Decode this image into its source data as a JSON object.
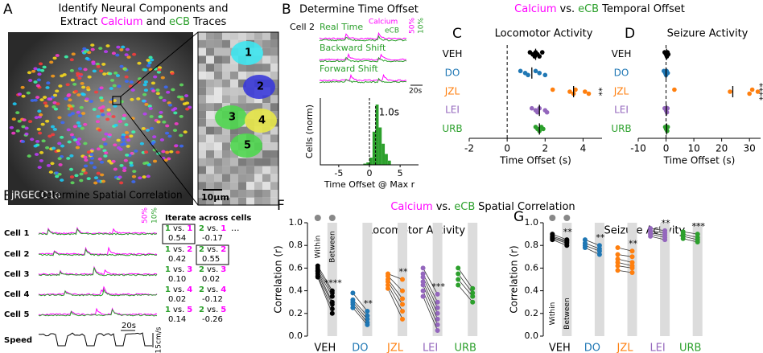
{
  "letters": [
    "A",
    "B",
    "C",
    "D",
    "E",
    "F",
    "G"
  ],
  "A": {
    "title": "Identify Neural Components and",
    "subtitle": [
      "Extract",
      "Calcium",
      "and",
      "eCB",
      "Traces"
    ],
    "indicator": "jRGECO1a",
    "scalebar": "10μm",
    "rois": [
      "1",
      "2",
      "3",
      "4",
      "5"
    ]
  },
  "B": {
    "title": "Determine Time Offset",
    "cell": "Cell 2",
    "traces": [
      "Real Time",
      "Backward Shift",
      "Forward Shift"
    ],
    "legend": [
      "Calcium",
      "eCB"
    ],
    "scales": [
      "50%",
      "10%"
    ],
    "time_scale": "20s"
  },
  "header_temporal": [
    "Calcium",
    "vs.",
    "eCB",
    "Temporal Offset"
  ],
  "header_spatial": [
    "Calcium",
    "vs.",
    "eCB",
    "Spatial Correlation"
  ],
  "E": {
    "title": "Determine Spatial Correlation",
    "cells": [
      "Cell 1",
      "Cell 2",
      "Cell 3",
      "Cell 4",
      "Cell 5"
    ],
    "iterate": "Iterate across cells",
    "ellipsis": "...",
    "pairs": [
      [
        {
          "ecb": "1",
          "vs": "vs.",
          "ca": "1",
          "r": "0.54"
        },
        {
          "ecb": "2",
          "vs": "vs.",
          "ca": "1",
          "r": "-0.17"
        }
      ],
      [
        {
          "ecb": "1",
          "vs": "vs.",
          "ca": "2",
          "r": "0.42"
        },
        {
          "ecb": "2",
          "vs": "vs.",
          "ca": "2",
          "r": "0.55"
        }
      ],
      [
        {
          "ecb": "1",
          "vs": "vs.",
          "ca": "3",
          "r": "0.10"
        },
        {
          "ecb": "2",
          "vs": "vs.",
          "ca": "3",
          "r": "0.02"
        }
      ],
      [
        {
          "ecb": "1",
          "vs": "vs.",
          "ca": "4",
          "r": "0.02"
        },
        {
          "ecb": "2",
          "vs": "vs.",
          "ca": "4",
          "r": "-0.12"
        }
      ],
      [
        {
          "ecb": "1",
          "vs": "vs.",
          "ca": "5",
          "r": "0.14"
        },
        {
          "ecb": "2",
          "vs": "vs.",
          "ca": "5",
          "r": "-0.26"
        }
      ]
    ],
    "speed": "Speed",
    "time_scale": "20s",
    "speed_scale": "15cm/s",
    "scales": [
      "50%",
      "10%"
    ]
  },
  "chart_data": [
    {
      "type": "histogram",
      "ylabel": "Cells (norm)",
      "xlabel": "Time Offset @ Max r",
      "color": "#2ca02c",
      "bins": [
        -1,
        -0.5,
        0,
        0.5,
        1,
        1.5,
        2,
        2.5,
        3,
        3.5
      ],
      "counts": [
        0.02,
        0.04,
        0.12,
        0.55,
        1.0,
        0.62,
        0.35,
        0.18,
        0.07
      ],
      "xlim": [
        -8,
        8
      ],
      "xticks": [
        -5,
        0,
        5
      ],
      "reference_line": 0,
      "mean_line": 1.0,
      "annotation": "1.0s"
    },
    {
      "type": "strip",
      "title": "Locomotor Activity",
      "xlabel": "Time Offset (s)",
      "xlim": [
        -2,
        5
      ],
      "xticks": [
        -2,
        0,
        2,
        4
      ],
      "reference_line": 0,
      "series": [
        {
          "name": "VEH",
          "color": "#000000",
          "values": [
            1.2,
            1.35,
            1.45,
            1.5,
            1.6,
            1.7,
            1.85
          ],
          "mean": 1.5
        },
        {
          "name": "DO",
          "color": "#1f77b4",
          "values": [
            0.7,
            0.95,
            1.1,
            1.5,
            1.7,
            2.0
          ],
          "mean": 1.3
        },
        {
          "name": "JZL",
          "color": "#ff7f0e",
          "values": [
            2.4,
            3.3,
            3.5,
            3.6,
            4.1,
            4.3
          ],
          "mean": 3.5,
          "significance": "**"
        },
        {
          "name": "LEI",
          "color": "#9467bd",
          "values": [
            1.3,
            1.5,
            1.6,
            1.7,
            2.0,
            2.1
          ],
          "mean": 1.7
        },
        {
          "name": "URB",
          "color": "#2ca02c",
          "values": [
            1.5,
            1.6,
            1.7,
            1.8,
            1.9
          ],
          "mean": 1.7
        }
      ]
    },
    {
      "type": "strip",
      "title": "Seizure Activity",
      "xlabel": "Time Offset (s)",
      "xlim": [
        -10,
        34
      ],
      "xticks": [
        -10,
        0,
        10,
        20,
        30
      ],
      "reference_line": 0,
      "series": [
        {
          "name": "VEH",
          "color": "#000000",
          "values": [
            -0.5,
            0,
            0.3,
            0.5,
            0.8
          ],
          "mean": 0.2
        },
        {
          "name": "DO",
          "color": "#1f77b4",
          "values": [
            -0.8,
            -0.3,
            0,
            0.2,
            0.6
          ],
          "mean": 0
        },
        {
          "name": "JZL",
          "color": "#ff7f0e",
          "values": [
            3,
            23,
            30,
            31,
            33
          ],
          "mean": 24,
          "significance": "****"
        },
        {
          "name": "LEI",
          "color": "#9467bd",
          "values": [
            -0.5,
            0,
            0.3,
            0.5
          ],
          "mean": 0.1
        },
        {
          "name": "URB",
          "color": "#2ca02c",
          "values": [
            -0.3,
            0,
            0.4,
            0.6
          ],
          "mean": 0.2
        }
      ]
    },
    {
      "type": "paired",
      "title": "Locomotor Activity",
      "ylabel": "Correlation (r)",
      "legend": [
        "Within",
        "Between"
      ],
      "ylim": [
        0,
        1
      ],
      "yticks": [
        {
          "value": 0,
          "label": "0.0"
        },
        0.2,
        0.4,
        0.6,
        0.8,
        {
          "value": 1,
          "label": "1.0"
        }
      ],
      "series": [
        {
          "name": "VEH",
          "color": "#000000",
          "within": [
            0.62,
            0.6,
            0.58,
            0.57,
            0.55,
            0.53,
            0.52
          ],
          "between": [
            0.4,
            0.38,
            0.35,
            0.3,
            0.28,
            0.24,
            0.2
          ],
          "significance": "****"
        },
        {
          "name": "DO",
          "color": "#1f77b4",
          "within": [
            0.38,
            0.32,
            0.3,
            0.28,
            0.25
          ],
          "between": [
            0.22,
            0.18,
            0.15,
            0.12,
            0.1
          ],
          "significance": "**"
        },
        {
          "name": "JZL",
          "color": "#ff7f0e",
          "within": [
            0.55,
            0.53,
            0.5,
            0.48,
            0.45,
            0.42
          ],
          "between": [
            0.5,
            0.4,
            0.33,
            0.28,
            0.22,
            0.15
          ],
          "significance": "**"
        },
        {
          "name": "LEI",
          "color": "#9467bd",
          "within": [
            0.6,
            0.55,
            0.52,
            0.48,
            0.45,
            0.4,
            0.35
          ],
          "between": [
            0.37,
            0.3,
            0.25,
            0.2,
            0.15,
            0.1,
            0.05
          ],
          "significance": "***"
        },
        {
          "name": "URB",
          "color": "#2ca02c",
          "within": [
            0.6,
            0.55,
            0.5,
            0.45
          ],
          "between": [
            0.42,
            0.38,
            0.35,
            0.3
          ]
        }
      ]
    },
    {
      "type": "paired",
      "title": "Seizure Activity",
      "ylabel": "Correlation (r)",
      "legend": [
        "Within",
        "Between"
      ],
      "ylim": [
        0,
        1
      ],
      "yticks": [
        {
          "value": 0,
          "label": "0.0"
        },
        0.2,
        0.4,
        0.6,
        0.8,
        {
          "value": 1,
          "label": "1.0"
        }
      ],
      "series": [
        {
          "name": "VEH",
          "color": "#000000",
          "within": [
            0.9,
            0.88,
            0.87,
            0.86,
            0.85
          ],
          "between": [
            0.85,
            0.84,
            0.83,
            0.82,
            0.8
          ],
          "significance": "**"
        },
        {
          "name": "DO",
          "color": "#1f77b4",
          "within": [
            0.85,
            0.82,
            0.8,
            0.78
          ],
          "between": [
            0.8,
            0.77,
            0.75,
            0.72
          ],
          "significance": "**"
        },
        {
          "name": "JZL",
          "color": "#ff7f0e",
          "within": [
            0.78,
            0.72,
            0.68,
            0.65,
            0.62,
            0.58
          ],
          "between": [
            0.75,
            0.7,
            0.65,
            0.62,
            0.6,
            0.56
          ],
          "significance": "**"
        },
        {
          "name": "LEI",
          "color": "#9467bd",
          "within": [
            0.95,
            0.93,
            0.91,
            0.9,
            0.88
          ],
          "between": [
            0.93,
            0.91,
            0.89,
            0.87,
            0.85
          ],
          "significance": "**"
        },
        {
          "name": "URB",
          "color": "#2ca02c",
          "within": [
            0.92,
            0.9,
            0.88,
            0.86
          ],
          "between": [
            0.9,
            0.87,
            0.85,
            0.83
          ],
          "significance": "***"
        }
      ]
    }
  ]
}
